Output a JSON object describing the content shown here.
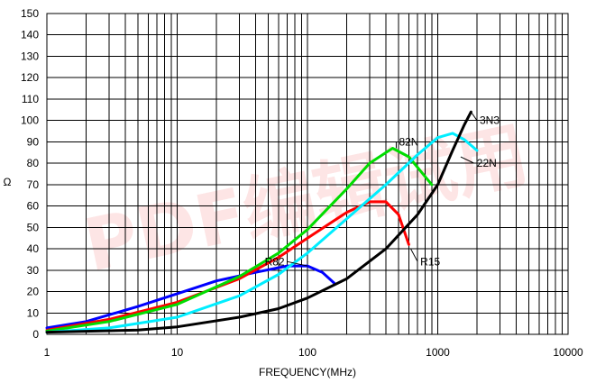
{
  "chart_data": {
    "type": "line",
    "xlabel": "FREQUENCY(MHz)",
    "ylabel": "Ω",
    "xscale": "log",
    "xlim": [
      1,
      10000
    ],
    "ylim": [
      0,
      150
    ],
    "grid": true,
    "x_ticks": [
      1,
      10,
      100,
      1000,
      10000
    ],
    "x_tick_labels": [
      "1",
      "10",
      "100",
      "1000",
      "10000"
    ],
    "y_ticks": [
      0,
      10,
      20,
      30,
      40,
      50,
      60,
      70,
      80,
      90,
      100,
      110,
      120,
      130,
      140,
      150
    ],
    "y_tick_labels": [
      "0",
      "10",
      "20",
      "30",
      "40",
      "50",
      "60",
      "70",
      "80",
      "90",
      "100",
      "110",
      "120",
      "130",
      "140",
      "150"
    ],
    "watermark": "PDF编辑试用",
    "series": [
      {
        "name": "R82",
        "color": "#0000ff",
        "x": [
          1,
          2,
          5,
          10,
          20,
          40,
          70,
          100,
          130,
          160
        ],
        "y": [
          3,
          6,
          13,
          19,
          25,
          29,
          32,
          32,
          29,
          24
        ]
      },
      {
        "name": "R15",
        "color": "#ff0000",
        "x": [
          1,
          3,
          10,
          30,
          60,
          100,
          200,
          300,
          400,
          500,
          600
        ],
        "y": [
          2,
          7,
          15,
          26,
          36,
          45,
          57,
          62,
          62,
          56,
          42
        ]
      },
      {
        "name": "82N",
        "color": "#00dd00",
        "x": [
          1,
          3,
          10,
          30,
          60,
          100,
          200,
          300,
          450,
          600,
          900
        ],
        "y": [
          1.5,
          6,
          14,
          27,
          38,
          49,
          68,
          80,
          87,
          83,
          70
        ]
      },
      {
        "name": "22N",
        "color": "#00eeff",
        "x": [
          1,
          3,
          10,
          30,
          60,
          100,
          200,
          400,
          700,
          1000,
          1300,
          1600,
          2000
        ],
        "y": [
          1,
          3,
          8,
          18,
          28,
          38,
          54,
          70,
          84,
          92,
          94,
          91,
          86
        ]
      },
      {
        "name": "3N3",
        "color": "#000000",
        "x": [
          1,
          5,
          10,
          30,
          60,
          100,
          200,
          400,
          700,
          1000,
          1300,
          1600,
          1800
        ],
        "y": [
          1,
          2,
          3.5,
          8,
          12,
          17,
          26,
          40,
          56,
          70,
          86,
          98,
          104
        ]
      }
    ],
    "series_labels": [
      {
        "series": "R82",
        "at": [
          70,
          34
        ],
        "leader_to": [
          100,
          32
        ]
      },
      {
        "series": "R15",
        "at": [
          700,
          34
        ],
        "leader_to": [
          620,
          40
        ]
      },
      {
        "series": "82N",
        "at": [
          480,
          90
        ],
        "leader_to": [
          480,
          87
        ]
      },
      {
        "series": "22N",
        "at": [
          1900,
          80
        ],
        "leader_to": [
          1500,
          83
        ]
      },
      {
        "series": "3N3",
        "at": [
          2000,
          100
        ],
        "leader_to": [
          1800,
          104
        ]
      }
    ]
  }
}
